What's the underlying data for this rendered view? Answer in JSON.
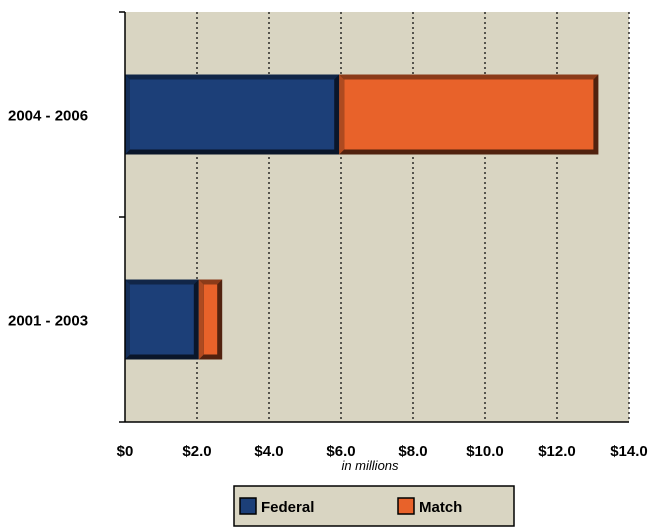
{
  "chart_data": {
    "type": "bar",
    "orientation": "horizontal",
    "stacked": true,
    "categories": [
      "2004 - 2006",
      "2001 - 2003"
    ],
    "series": [
      {
        "name": "Federal",
        "values": [
          5.95,
          2.05
        ],
        "color": "#1c3f78"
      },
      {
        "name": "Match",
        "values": [
          7.2,
          0.65
        ],
        "color": "#e8622a"
      }
    ],
    "xlim": [
      0,
      14
    ],
    "x_tick_values": [
      0,
      2,
      4,
      6,
      8,
      10,
      12,
      14
    ],
    "x_tick_labels": [
      "$0",
      "$2.0",
      "$4.0",
      "$6.0",
      "$8.0",
      "$10.0",
      "$12.0",
      "$14.0"
    ],
    "xlabel": "in millions",
    "grid": "vertical dotted",
    "legend_position": "bottom",
    "plot_background": "#d9d5c2"
  }
}
